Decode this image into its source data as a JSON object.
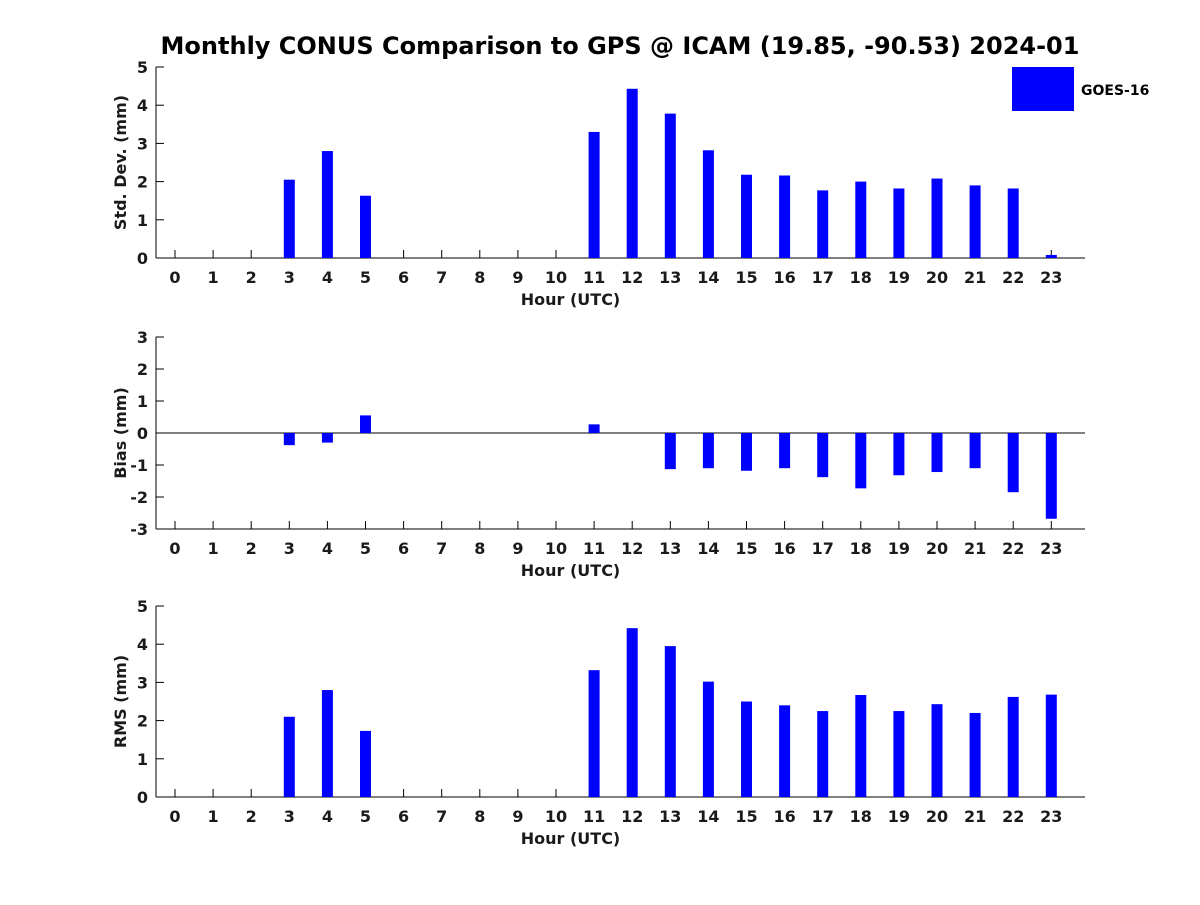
{
  "chart_data": {
    "type": "bar",
    "title": "Monthly CONUS Comparison to GPS @ ICAM (19.85, -90.53) 2024-01",
    "legend": {
      "placement": "top-right",
      "entries": [
        {
          "label": "GOES-16",
          "color": "#0000ff"
        }
      ]
    },
    "grid": false,
    "panels": [
      {
        "ylabel": "Std. Dev. (mm)",
        "xlabel": "Hour (UTC)",
        "ylim": [
          0,
          5
        ],
        "yticks": [
          0,
          1,
          2,
          3,
          4,
          5
        ],
        "categories": [
          "0",
          "1",
          "2",
          "3",
          "4",
          "5",
          "6",
          "7",
          "8",
          "9",
          "10",
          "11",
          "12",
          "13",
          "14",
          "15",
          "16",
          "17",
          "18",
          "19",
          "20",
          "21",
          "22",
          "23"
        ],
        "series": [
          {
            "name": "GOES-16",
            "values": [
              null,
              null,
              null,
              2.05,
              2.8,
              1.63,
              null,
              null,
              null,
              null,
              null,
              3.3,
              4.43,
              3.78,
              2.82,
              2.18,
              2.16,
              1.77,
              2.0,
              1.82,
              2.08,
              1.9,
              1.82,
              0.08
            ]
          }
        ]
      },
      {
        "ylabel": "Bias (mm)",
        "xlabel": "Hour (UTC)",
        "ylim": [
          -3,
          3
        ],
        "yticks": [
          -3,
          -2,
          -1,
          0,
          1,
          2,
          3
        ],
        "categories": [
          "0",
          "1",
          "2",
          "3",
          "4",
          "5",
          "6",
          "7",
          "8",
          "9",
          "10",
          "11",
          "12",
          "13",
          "14",
          "15",
          "16",
          "17",
          "18",
          "19",
          "20",
          "21",
          "22",
          "23"
        ],
        "series": [
          {
            "name": "GOES-16",
            "values": [
              null,
              null,
              null,
              -0.38,
              -0.3,
              0.55,
              null,
              null,
              null,
              null,
              null,
              0.27,
              null,
              -1.13,
              -1.1,
              -1.18,
              -1.1,
              -1.38,
              -1.73,
              -1.32,
              -1.22,
              -1.1,
              -1.85,
              -2.68
            ]
          }
        ]
      },
      {
        "ylabel": "RMS (mm)",
        "xlabel": "Hour (UTC)",
        "ylim": [
          0,
          5
        ],
        "yticks": [
          0,
          1,
          2,
          3,
          4,
          5
        ],
        "categories": [
          "0",
          "1",
          "2",
          "3",
          "4",
          "5",
          "6",
          "7",
          "8",
          "9",
          "10",
          "11",
          "12",
          "13",
          "14",
          "15",
          "16",
          "17",
          "18",
          "19",
          "20",
          "21",
          "22",
          "23"
        ],
        "series": [
          {
            "name": "GOES-16",
            "values": [
              null,
              null,
              null,
              2.1,
              2.8,
              1.73,
              null,
              null,
              null,
              null,
              null,
              3.32,
              4.42,
              3.95,
              3.02,
              2.5,
              2.4,
              2.25,
              2.67,
              2.25,
              2.43,
              2.2,
              2.62,
              2.68
            ]
          }
        ]
      }
    ]
  }
}
